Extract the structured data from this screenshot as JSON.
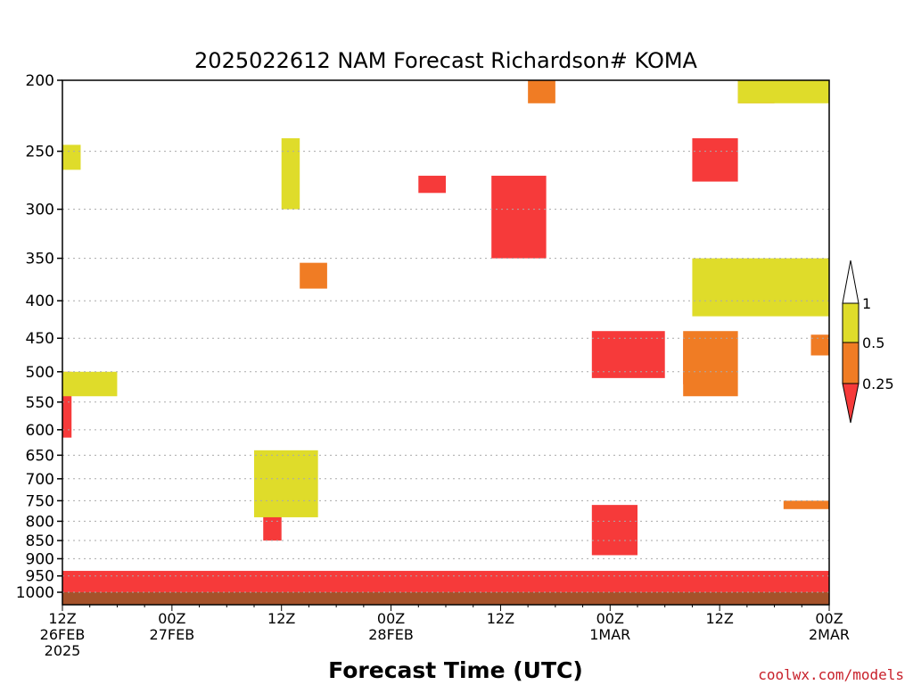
{
  "chart_data": {
    "type": "heatmap",
    "title": "2025022612 NAM Forecast Richardson# KOMA",
    "xlabel": "Forecast Time (UTC)",
    "ylabel": "",
    "credit": "coolwx.com/models",
    "y_scale": "log-pressure",
    "ylim": [
      1040,
      200
    ],
    "grid": "dotted horizontal",
    "x_ticks": [
      {
        "hour": 0,
        "line1": "12Z",
        "line2": "26FEB",
        "line3": "2025"
      },
      {
        "hour": 12,
        "line1": "00Z",
        "line2": "27FEB",
        "line3": ""
      },
      {
        "hour": 24,
        "line1": "12Z",
        "line2": "",
        "line3": ""
      },
      {
        "hour": 36,
        "line1": "00Z",
        "line2": "28FEB",
        "line3": ""
      },
      {
        "hour": 48,
        "line1": "12Z",
        "line2": "",
        "line3": ""
      },
      {
        "hour": 60,
        "line1": "00Z",
        "line2": "1MAR",
        "line3": ""
      },
      {
        "hour": 72,
        "line1": "12Z",
        "line2": "",
        "line3": ""
      },
      {
        "hour": 84,
        "line1": "00Z",
        "line2": "2MAR",
        "line3": ""
      }
    ],
    "y_ticks": [
      "200",
      "250",
      "300",
      "350",
      "400",
      "450",
      "500",
      "550",
      "600",
      "650",
      "700",
      "750",
      "800",
      "850",
      "900",
      "950",
      "1000"
    ],
    "legend": {
      "placement": "right",
      "labels": [
        "1",
        "0.5",
        "0.25"
      ],
      "bins": [
        {
          "label": "0.5 to 1",
          "color": "#dfdc2a"
        },
        {
          "label": "0.25 to 0.5",
          "color": "#f07c24"
        },
        {
          "label": "< 0.25",
          "color": "#f63a3a"
        }
      ]
    },
    "colors": {
      "yellow": "#dfdc2a",
      "orange": "#f07c24",
      "red": "#f63a3a",
      "ground": "#a5522a"
    },
    "layers": [
      {
        "bin": "< 0.25",
        "hour_start": 0,
        "hour_end": 84,
        "p_top": 935,
        "p_bottom": 1000,
        "note": "near-surface low Richardson layer"
      },
      {
        "bin": "< 0.25",
        "hour_start": 0,
        "hour_end": 1,
        "p_top": 500,
        "p_bottom": 615
      },
      {
        "bin": "< 0.25",
        "hour_start": 22,
        "hour_end": 24,
        "p_top": 780,
        "p_bottom": 850
      },
      {
        "bin": "< 0.25",
        "hour_start": 39,
        "hour_end": 42,
        "p_top": 270,
        "p_bottom": 285
      },
      {
        "bin": "< 0.25",
        "hour_start": 47,
        "hour_end": 53,
        "p_top": 270,
        "p_bottom": 350
      },
      {
        "bin": "< 0.25",
        "hour_start": 58,
        "hour_end": 66,
        "p_top": 440,
        "p_bottom": 510
      },
      {
        "bin": "< 0.25",
        "hour_start": 58,
        "hour_end": 63,
        "p_top": 760,
        "p_bottom": 890
      },
      {
        "bin": "< 0.25",
        "hour_start": 69,
        "hour_end": 74,
        "p_top": 240,
        "p_bottom": 275
      },
      {
        "bin": "< 0.25",
        "hour_start": 68,
        "hour_end": 73,
        "p_top": 450,
        "p_bottom": 520
      },
      {
        "bin": "0.25 to 0.5",
        "hour_start": 51,
        "hour_end": 54,
        "p_top": 200,
        "p_bottom": 215
      },
      {
        "bin": "0.25 to 0.5",
        "hour_start": 74,
        "hour_end": 78,
        "p_top": 200,
        "p_bottom": 215
      },
      {
        "bin": "0.25 to 0.5",
        "hour_start": 26,
        "hour_end": 29,
        "p_top": 355,
        "p_bottom": 385
      },
      {
        "bin": "0.25 to 0.5",
        "hour_start": 68,
        "hour_end": 74,
        "p_top": 440,
        "p_bottom": 540
      },
      {
        "bin": "0.25 to 0.5",
        "hour_start": 82,
        "hour_end": 84,
        "p_top": 445,
        "p_bottom": 475
      },
      {
        "bin": "0.25 to 0.5",
        "hour_start": 79,
        "hour_end": 84,
        "p_top": 750,
        "p_bottom": 770
      },
      {
        "bin": "0.5 to 1",
        "hour_start": 0,
        "hour_end": 2,
        "p_top": 245,
        "p_bottom": 265
      },
      {
        "bin": "0.5 to 1",
        "hour_start": 24,
        "hour_end": 26,
        "p_top": 240,
        "p_bottom": 300
      },
      {
        "bin": "0.5 to 1",
        "hour_start": 74,
        "hour_end": 84,
        "p_top": 200,
        "p_bottom": 215
      },
      {
        "bin": "0.5 to 1",
        "hour_start": 0,
        "hour_end": 6,
        "p_top": 500,
        "p_bottom": 540
      },
      {
        "bin": "0.5 to 1",
        "hour_start": 69,
        "hour_end": 84,
        "p_top": 350,
        "p_bottom": 420
      },
      {
        "bin": "0.5 to 1",
        "hour_start": 21,
        "hour_end": 28,
        "p_top": 640,
        "p_bottom": 790
      }
    ]
  }
}
